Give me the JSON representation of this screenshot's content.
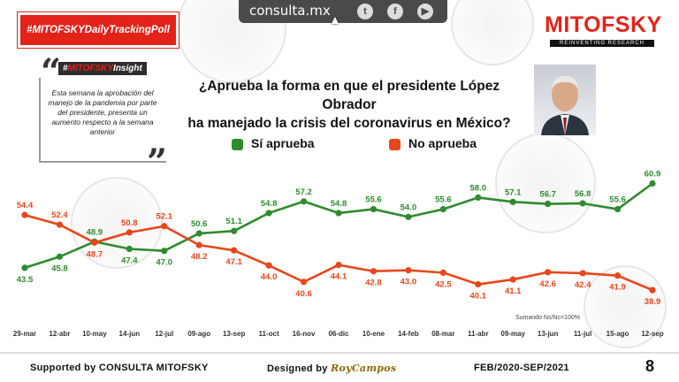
{
  "header": {
    "site": "consulta.mx",
    "social_icons": [
      "twitter-icon",
      "facebook-icon",
      "youtube-icon"
    ],
    "poll_badge": "#MITOFSKYDailyTrackingPoll",
    "logo": "MITOFSKY",
    "logo_tagline": "REINVENTING RESEARCH"
  },
  "insight": {
    "tag_prefix": "#",
    "tag_brand": "MITOFSKY",
    "tag_suffix": "Insight",
    "text": "Esta semana la aprobación del manejo de la pandemia por parte del presidente, presenta un aumento respecto a la semana anterior"
  },
  "question": {
    "line1": "¿Aprueba la forma en que el presidente López Obrador",
    "line2": "ha manejado la crisis del coronavirus en México?"
  },
  "colors": {
    "approve": "#2e8b2e",
    "disapprove": "#e8461a",
    "brand_red": "#e2231a"
  },
  "chart_data": {
    "type": "line",
    "title": "¿Aprueba la forma en que el presidente López Obrador ha manejado la crisis del coronavirus en México?",
    "x": [
      "29-mar",
      "12-abr",
      "10-may",
      "14-jun",
      "12-jul",
      "09-ago",
      "13-sep",
      "11-oct",
      "16-nov",
      "06-dic",
      "10-ene",
      "14-feb",
      "08-mar",
      "11-abr",
      "09-may",
      "13-jun",
      "11-jul",
      "15-ago",
      "12-sep"
    ],
    "series": [
      {
        "name": "Sí aprueba",
        "values": [
          43.5,
          45.8,
          48.9,
          47.4,
          47.0,
          50.6,
          51.1,
          54.8,
          57.2,
          54.8,
          55.6,
          54.0,
          55.6,
          58.0,
          57.1,
          56.7,
          56.8,
          55.6,
          60.9
        ]
      },
      {
        "name": "No aprueba",
        "values": [
          54.4,
          52.4,
          48.7,
          50.8,
          52.1,
          48.2,
          47.1,
          44.0,
          40.6,
          44.1,
          42.8,
          43.0,
          42.5,
          40.1,
          41.1,
          42.6,
          42.4,
          41.9,
          38.9
        ]
      }
    ],
    "ylim": [
      36,
      63
    ],
    "grid": false,
    "legend": "top-center",
    "note": "Sumando Ns/Nc=100%"
  },
  "footer": {
    "supported": "Supported by  CONSULTA  MITOFSKY",
    "designed": "Designed by",
    "designer": "RoyCampos",
    "period": "FEB/2020-SEP/2021",
    "page": "8"
  }
}
